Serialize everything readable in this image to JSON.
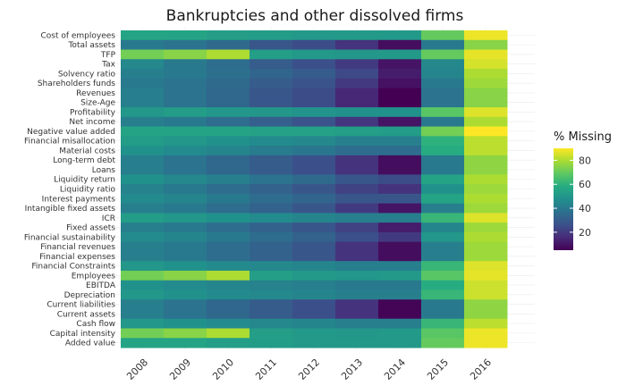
{
  "chart_data": {
    "type": "heatmap",
    "title": "Bankruptcies and other dissolved firms",
    "xlabel": "",
    "ylabel": "",
    "x": [
      "2008",
      "2009",
      "2010",
      "2011",
      "2012",
      "2013",
      "2014",
      "2015",
      "2016"
    ],
    "y": [
      "Cost of employees",
      "Total assets",
      "TFP",
      "Tax",
      "Solvency ratio",
      "Shareholders funds",
      "Revenues",
      "Size-Age",
      "Profitability",
      "Net income",
      "Negative value added",
      "Financial misallocation",
      "Material costs",
      "Long-term debt",
      "Loans",
      "Liquidity return",
      "Liquidity ratio",
      "Interest payments",
      "Intangible fixed assets",
      "ICR",
      "Fixed assets",
      "Financial sustainability",
      "Financial revenues",
      "Financial expenses",
      "Financial Constraints",
      "Employees",
      "EBITDA",
      "Depreciation",
      "Current liabilities",
      "Current assets",
      "Cash flow",
      "Capital intensity",
      "Added value"
    ],
    "values": [
      [
        55,
        55,
        53,
        52,
        51,
        51,
        51,
        70,
        88
      ],
      [
        40,
        38,
        35,
        28,
        25,
        18,
        8,
        40,
        75
      ],
      [
        72,
        75,
        80,
        53,
        51,
        50,
        51,
        70,
        87
      ],
      [
        45,
        40,
        36,
        30,
        26,
        20,
        10,
        45,
        85
      ],
      [
        42,
        40,
        37,
        33,
        30,
        24,
        12,
        44,
        80
      ],
      [
        40,
        38,
        35,
        30,
        27,
        20,
        9,
        40,
        78
      ],
      [
        42,
        38,
        34,
        28,
        25,
        15,
        5,
        38,
        75
      ],
      [
        42,
        38,
        34,
        28,
        25,
        15,
        5,
        38,
        75
      ],
      [
        50,
        52,
        50,
        50,
        49,
        48,
        48,
        68,
        86
      ],
      [
        42,
        40,
        36,
        31,
        27,
        19,
        10,
        40,
        80
      ],
      [
        55,
        55,
        55,
        54,
        54,
        53,
        52,
        72,
        90
      ],
      [
        52,
        50,
        48,
        46,
        45,
        42,
        42,
        60,
        82
      ],
      [
        48,
        46,
        44,
        41,
        39,
        36,
        36,
        58,
        82
      ],
      [
        42,
        38,
        34,
        30,
        26,
        18,
        8,
        40,
        76
      ],
      [
        42,
        38,
        34,
        30,
        26,
        18,
        8,
        40,
        76
      ],
      [
        48,
        45,
        42,
        38,
        35,
        28,
        25,
        55,
        80
      ],
      [
        43,
        40,
        36,
        32,
        28,
        22,
        18,
        48,
        78
      ],
      [
        46,
        44,
        40,
        36,
        33,
        28,
        28,
        55,
        80
      ],
      [
        42,
        40,
        36,
        32,
        28,
        20,
        10,
        42,
        78
      ],
      [
        52,
        50,
        48,
        46,
        44,
        42,
        42,
        62,
        86
      ],
      [
        42,
        40,
        36,
        32,
        28,
        22,
        12,
        44,
        78
      ],
      [
        46,
        44,
        40,
        36,
        32,
        26,
        20,
        50,
        80
      ],
      [
        42,
        40,
        36,
        32,
        28,
        18,
        8,
        42,
        78
      ],
      [
        42,
        40,
        36,
        32,
        28,
        18,
        8,
        42,
        78
      ],
      [
        50,
        48,
        46,
        45,
        44,
        42,
        42,
        62,
        86
      ],
      [
        72,
        75,
        80,
        53,
        51,
        50,
        51,
        68,
        87
      ],
      [
        48,
        46,
        44,
        43,
        42,
        40,
        40,
        58,
        84
      ],
      [
        50,
        48,
        46,
        45,
        44,
        42,
        42,
        62,
        84
      ],
      [
        42,
        38,
        34,
        30,
        26,
        18,
        6,
        40,
        76
      ],
      [
        42,
        38,
        34,
        30,
        26,
        18,
        6,
        40,
        76
      ],
      [
        50,
        48,
        46,
        45,
        44,
        42,
        42,
        62,
        82
      ],
      [
        72,
        75,
        80,
        53,
        51,
        50,
        51,
        68,
        88
      ],
      [
        55,
        55,
        53,
        52,
        51,
        51,
        51,
        70,
        88
      ]
    ],
    "legend": {
      "title": "% Missing",
      "ticks": [
        20,
        40,
        60,
        80
      ],
      "min": 5,
      "max": 90,
      "position": "right"
    },
    "colormap": "viridis",
    "grid": true
  }
}
